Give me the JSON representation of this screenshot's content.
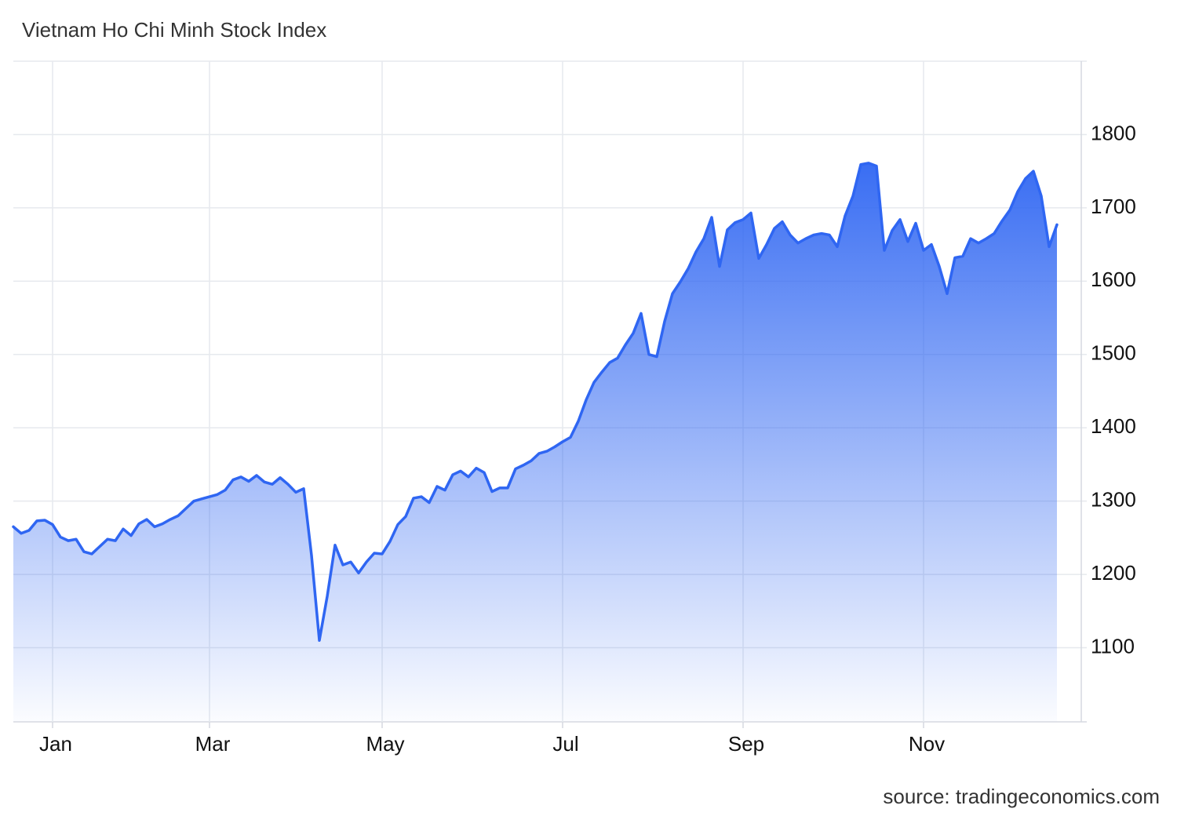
{
  "chart_data": {
    "type": "area",
    "title": "Vietnam Ho Chi Minh Stock Index",
    "source": "source: tradingeconomics.com",
    "categories": [
      null,
      null,
      null,
      null,
      null,
      "Jan",
      null,
      null,
      null,
      null,
      null,
      null,
      null,
      null,
      null,
      null,
      null,
      null,
      null,
      null,
      null,
      null,
      null,
      null,
      null,
      "Mar",
      null,
      null,
      null,
      null,
      null,
      null,
      null,
      null,
      null,
      null,
      null,
      null,
      null,
      null,
      null,
      null,
      null,
      null,
      null,
      null,
      null,
      "May",
      null,
      null,
      null,
      null,
      null,
      null,
      null,
      null,
      null,
      null,
      null,
      null,
      null,
      null,
      null,
      null,
      null,
      null,
      null,
      null,
      null,
      null,
      "Jul",
      null,
      null,
      null,
      null,
      null,
      null,
      null,
      null,
      null,
      null,
      null,
      null,
      null,
      null,
      null,
      null,
      null,
      null,
      null,
      null,
      null,
      null,
      "Sep",
      null,
      null,
      null,
      null,
      null,
      null,
      null,
      null,
      null,
      null,
      null,
      null,
      null,
      null,
      null,
      null,
      null,
      null,
      null,
      null,
      null,
      null,
      "Nov",
      null,
      null,
      null,
      null,
      null,
      null,
      null,
      null,
      null,
      null,
      null,
      null,
      null,
      null,
      null,
      null,
      null
    ],
    "values": [
      1265,
      1256,
      1260,
      1273,
      1274,
      1268,
      1251,
      1246,
      1248,
      1231,
      1228,
      1238,
      1248,
      1246,
      1262,
      1253,
      1269,
      1275,
      1265,
      1269,
      1275,
      1280,
      1290,
      1300,
      1303,
      1306,
      1309,
      1315,
      1329,
      1333,
      1327,
      1335,
      1326,
      1323,
      1332,
      1323,
      1312,
      1317,
      1226,
      1110,
      1170,
      1240,
      1213,
      1217,
      1202,
      1217,
      1229,
      1228,
      1245,
      1268,
      1279,
      1304,
      1306,
      1298,
      1320,
      1315,
      1336,
      1341,
      1333,
      1345,
      1339,
      1313,
      1318,
      1318,
      1344,
      1349,
      1355,
      1365,
      1368,
      1374,
      1381,
      1387,
      1409,
      1438,
      1462,
      1476,
      1489,
      1495,
      1513,
      1529,
      1556,
      1500,
      1497,
      1545,
      1583,
      1599,
      1617,
      1640,
      1658,
      1687,
      1620,
      1670,
      1680,
      1684,
      1693,
      1631,
      1650,
      1672,
      1681,
      1663,
      1652,
      1658,
      1663,
      1665,
      1663,
      1647,
      1689,
      1716,
      1759,
      1761,
      1757,
      1642,
      1669,
      1684,
      1654,
      1679,
      1642,
      1650,
      1620,
      1583,
      1632,
      1634,
      1658,
      1652,
      1658,
      1665,
      1682,
      1697,
      1722,
      1740,
      1750,
      1716,
      1647,
      1677
    ],
    "color": "#2f66f2",
    "ylim": [
      1000,
      1900
    ],
    "yticks": [
      1100,
      1200,
      1300,
      1400,
      1500,
      1600,
      1700,
      1800
    ],
    "y_axis_side": "right",
    "grid": true
  }
}
